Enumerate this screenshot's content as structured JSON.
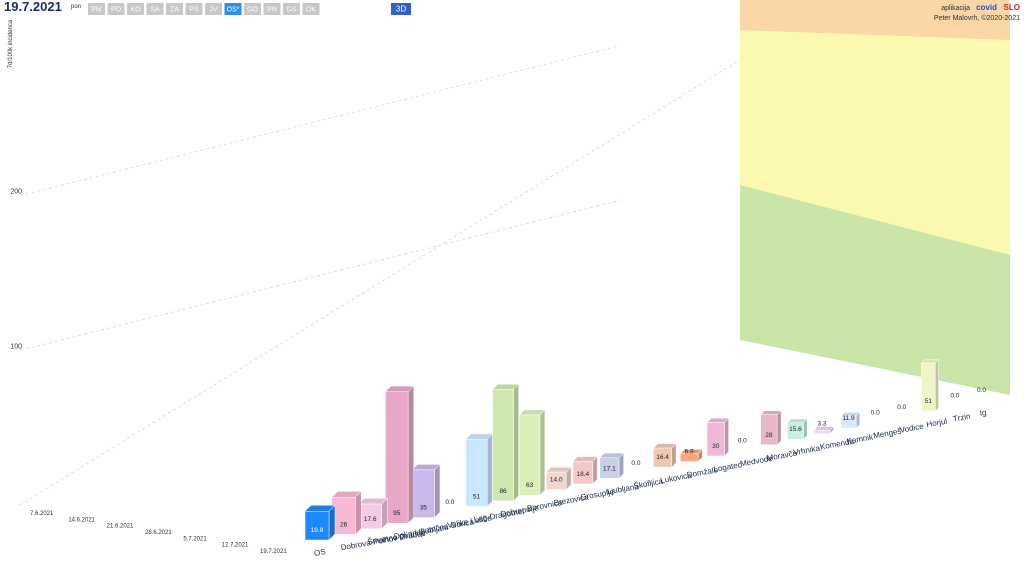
{
  "header": {
    "date": "19.7.2021",
    "weekday": "pon",
    "regions": [
      "PM",
      "PO",
      "KO",
      "SA",
      "ZA",
      "PS",
      "JV",
      "OS*",
      "GO",
      "PN",
      "GS",
      "OK"
    ],
    "active_region": 7,
    "view_button": "3D",
    "app_prefix": "aplikacija",
    "app_name_a": "covid",
    "app_name_b": "SLO",
    "author": "Peter Malovrh, ©2020-2021"
  },
  "chart_data": {
    "type": "bar",
    "ylabel": "7d/100k incidenca",
    "categories": [
      "OS",
      "Dobrova-Polhov Gradec",
      "Šmartno pri Litiji",
      "Dol pri Ljubljani",
      "Ivančna Gorica",
      "Velike Lašče",
      "Log-Dragomer",
      "Dobrepolje",
      "Borovnica",
      "Brezovica",
      "Grosuplje",
      "Ljubljana",
      "Škofljica",
      "Lukovica",
      "Domžale",
      "Logatec",
      "Medvode",
      "Moravče",
      "Vrhnika",
      "Komenda",
      "Kamnik",
      "Mengeš",
      "Vodice",
      "Horjul",
      "Trzin",
      "Ig"
    ],
    "values": [
      19.8,
      26,
      17.6,
      95,
      35,
      0,
      51,
      86,
      63,
      14,
      18.4,
      17.1,
      0,
      16.4,
      6.9,
      30,
      0,
      28,
      15.6,
      3.3,
      11.9,
      0,
      0,
      51,
      0,
      0
    ],
    "value_labels": [
      "19.8",
      "26",
      "17.6",
      "95",
      "35",
      "0.0",
      "51",
      "86",
      "63",
      "14.0",
      "18.4",
      "17.1",
      "0.0",
      "16.4",
      "6.9",
      "30",
      "0.0",
      "28",
      "15.6",
      "3.3",
      "11.9",
      "0.0",
      "0.0",
      "51",
      "0.0",
      "0.0"
    ],
    "colors": [
      "#1e88ff",
      "#f7b8d4",
      "#f4cbe6",
      "#e8a7c8",
      "#c9b8ec",
      "#d8c8f0",
      "#c8e8ff",
      "#cfe8b0",
      "#d8f0b8",
      "#f0d8d0",
      "#f6c8c8",
      "#c8d0e8",
      "#d8d8d8",
      "#f0c8b0",
      "#f3a880",
      "#f0b8d8",
      "#d0f0e0",
      "#e8b8c8",
      "#c8f0e0",
      "#e8d8f0",
      "#d8e8ff",
      "#e0ecff",
      "#f0f8d0",
      "#eef6c8",
      "#f8f0c0",
      "#f0f0d0"
    ],
    "x": [
      "7.6.2021",
      "14.6.2021",
      "21.6.2021",
      "28.6.2021",
      "5.7.2021",
      "12.7.2021",
      "19.7.2021"
    ],
    "ylim": [
      0,
      320
    ],
    "yticks": [
      100,
      200
    ]
  }
}
